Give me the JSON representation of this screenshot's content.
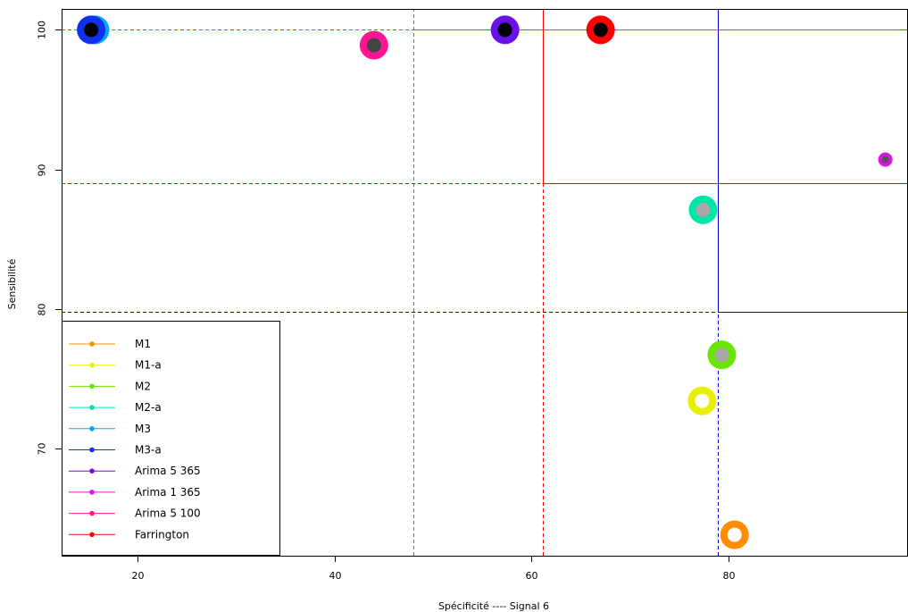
{
  "chart_data": {
    "type": "scatter",
    "title": "",
    "xlabel": "Spécificité  ----  Signal 6",
    "ylabel": "Sensibilité",
    "xlim": [
      12.3,
      98.2
    ],
    "ylim": [
      62.3,
      101.5
    ],
    "x_ticks": [
      20,
      40,
      60,
      80
    ],
    "y_ticks": [
      70,
      80,
      90,
      100
    ],
    "grid": false,
    "legend_placement": "bottom-left",
    "series": [
      {
        "name": "M1",
        "color": "#FF8C00",
        "x": 80.6,
        "y": 63.8,
        "inner_color": "#FFFFFF"
      },
      {
        "name": "M1-a",
        "color": "#E8F000",
        "x": 77.3,
        "y": 73.4,
        "inner_color": "#FFFFFF"
      },
      {
        "name": "M2",
        "color": "#66E600",
        "x": 79.3,
        "y": 76.7,
        "inner_color": "#A8A8A8"
      },
      {
        "name": "M2-a",
        "color": "#00E6A8",
        "x": 77.4,
        "y": 87.1,
        "inner_color": "#A8A8A8"
      },
      {
        "name": "M3",
        "color": "#00A8FF",
        "x": 15.7,
        "y": 100.0,
        "inner_color": "#000000"
      },
      {
        "name": "M3-a",
        "color": "#1030F0",
        "x": 15.3,
        "y": 100.0,
        "inner_color": "#000000"
      },
      {
        "name": "Arima 5 365",
        "color": "#6A10E8",
        "x": 57.3,
        "y": 100.0,
        "inner_color": "#000000"
      },
      {
        "name": "Arima 1 365",
        "color": "#E010F0",
        "x": 95.9,
        "y": 90.7,
        "inner_color": "#555555"
      },
      {
        "name": "Arima 5 100",
        "color": "#FF1493",
        "x": 44.0,
        "y": 98.9,
        "inner_color": "#444444"
      },
      {
        "name": "Farrington",
        "color": "#FF0000",
        "x": 67.0,
        "y": 100.0,
        "inner_color": "#000000"
      }
    ],
    "reference_lines": [
      {
        "orientation": "horizontal",
        "value": 100.0,
        "color": "#00C000",
        "style": "dashed",
        "from": 12.3,
        "to": 48.0
      },
      {
        "orientation": "horizontal",
        "value": 100.0,
        "color": "#00C000",
        "style": "solid",
        "from": 48.0,
        "to": 98.2
      },
      {
        "orientation": "vertical",
        "value": 48.0,
        "color": "#00C000",
        "style": "dashed"
      },
      {
        "orientation": "horizontal",
        "value": 89.0,
        "color": "#FF0000",
        "style": "dashed",
        "from": 12.3,
        "to": 61.1
      },
      {
        "orientation": "horizontal",
        "value": 89.0,
        "color": "#FF0000",
        "style": "solid",
        "from": 61.1,
        "to": 98.2
      },
      {
        "orientation": "vertical",
        "value": 61.1,
        "color": "#FF0000",
        "style": "dashed",
        "from": 62.3,
        "to": 89.0
      },
      {
        "orientation": "vertical",
        "value": 61.1,
        "color": "#FF0000",
        "style": "solid",
        "from": 89.0,
        "to": 101.5
      },
      {
        "orientation": "horizontal",
        "value": 79.8,
        "color": "#0000CC",
        "style": "dashed",
        "from": 12.3,
        "to": 78.9
      },
      {
        "orientation": "horizontal",
        "value": 79.8,
        "color": "#0000CC",
        "style": "solid",
        "from": 78.9,
        "to": 98.2
      },
      {
        "orientation": "vertical",
        "value": 78.9,
        "color": "#0000CC",
        "style": "dashed",
        "from": 62.3,
        "to": 79.8
      },
      {
        "orientation": "vertical",
        "value": 78.9,
        "color": "#0000CC",
        "style": "solid",
        "from": 79.8,
        "to": 101.5
      }
    ]
  }
}
